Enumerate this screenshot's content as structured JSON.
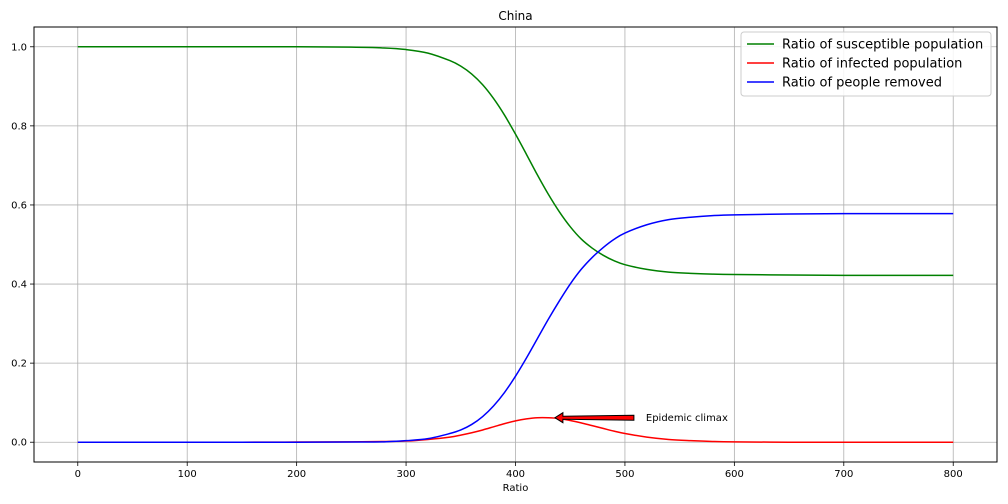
{
  "chart_data": {
    "type": "line",
    "title": "China",
    "xlabel": "Ratio",
    "ylabel": "",
    "xlim": [
      -40,
      840
    ],
    "ylim": [
      -0.05,
      1.05
    ],
    "xticks": [
      0,
      100,
      200,
      300,
      400,
      500,
      600,
      700,
      800
    ],
    "xtick_labels": [
      "0",
      "100",
      "200",
      "300",
      "400",
      "500",
      "600",
      "700",
      "800"
    ],
    "yticks": [
      0.0,
      0.2,
      0.4,
      0.6,
      0.8,
      1.0
    ],
    "ytick_labels": [
      "0.0",
      "0.2",
      "0.4",
      "0.6",
      "0.8",
      "1.0"
    ],
    "grid": true,
    "legend_position": "top-right",
    "x": [
      0,
      50,
      100,
      150,
      200,
      250,
      280,
      300,
      320,
      340,
      350,
      360,
      370,
      380,
      390,
      400,
      410,
      420,
      430,
      440,
      450,
      460,
      470,
      480,
      490,
      500,
      520,
      540,
      560,
      580,
      600,
      650,
      700,
      750,
      800
    ],
    "series": [
      {
        "name": "Ratio of susceptible population",
        "color": "#008000",
        "values": [
          1.0,
          1.0,
          1.0,
          1.0,
          1.0,
          0.999,
          0.997,
          0.993,
          0.984,
          0.965,
          0.951,
          0.931,
          0.904,
          0.869,
          0.827,
          0.779,
          0.728,
          0.676,
          0.627,
          0.583,
          0.545,
          0.514,
          0.491,
          0.473,
          0.459,
          0.449,
          0.437,
          0.43,
          0.427,
          0.425,
          0.424,
          0.423,
          0.422,
          0.422,
          0.422
        ]
      },
      {
        "name": "Ratio of infected population",
        "color": "#ff0000",
        "values": [
          0.0,
          0.0,
          0.0,
          0.0,
          0.0005,
          0.001,
          0.002,
          0.003,
          0.007,
          0.013,
          0.018,
          0.024,
          0.031,
          0.039,
          0.047,
          0.054,
          0.059,
          0.062,
          0.062,
          0.06,
          0.055,
          0.049,
          0.042,
          0.035,
          0.028,
          0.022,
          0.013,
          0.007,
          0.004,
          0.002,
          0.001,
          0.0,
          0.0,
          0.0,
          0.0
        ]
      },
      {
        "name": "Ratio of people removed",
        "color": "#0000ff",
        "values": [
          0.0,
          0.0,
          0.0,
          0.0,
          0.0,
          0.0005,
          0.001,
          0.004,
          0.009,
          0.022,
          0.031,
          0.045,
          0.065,
          0.092,
          0.126,
          0.167,
          0.213,
          0.262,
          0.311,
          0.357,
          0.4,
          0.437,
          0.467,
          0.492,
          0.513,
          0.529,
          0.55,
          0.563,
          0.569,
          0.573,
          0.575,
          0.577,
          0.578,
          0.578,
          0.578
        ]
      }
    ],
    "annotations": [
      {
        "text": "Epidemic climax",
        "xy": [
          436,
          0.062
        ],
        "xytext": [
          510,
          0.062
        ],
        "arrow_color": "#ff0000"
      }
    ]
  }
}
